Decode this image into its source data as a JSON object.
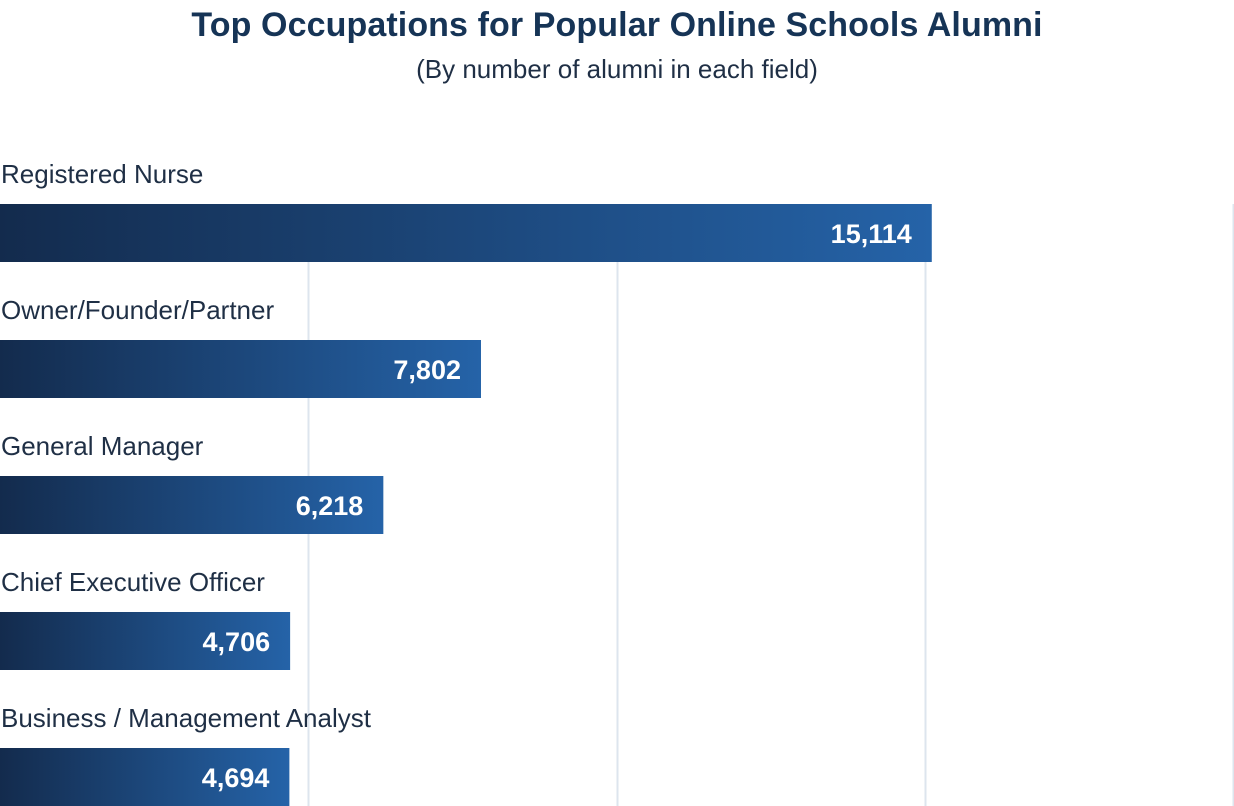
{
  "chart_data": {
    "type": "bar",
    "orientation": "horizontal",
    "title": "Top Occupations for Popular Online Schools Alumni",
    "subtitle": "(By number of alumni in each field)",
    "categories": [
      "Registered Nurse",
      "Owner/Founder/Partner",
      "General Manager",
      "Chief Executive Officer",
      "Business / Management Analyst"
    ],
    "values": [
      15114,
      7802,
      6218,
      4706,
      4694
    ],
    "value_labels": [
      "15,114",
      "7,802",
      "6,218",
      "4,706",
      "4,694"
    ],
    "xlim": [
      0,
      20000
    ],
    "x_grid_values": [
      5000,
      10000,
      15000,
      20000
    ],
    "grid": true,
    "legend": "none",
    "xlabel": "",
    "ylabel": ""
  },
  "colors": {
    "bar_gradient_start": "#132b4d",
    "bar_gradient_end": "#2563a8",
    "gridline": "#dde5ee",
    "title": "#163456",
    "text": "#1f2f45",
    "value_text": "#ffffff"
  }
}
